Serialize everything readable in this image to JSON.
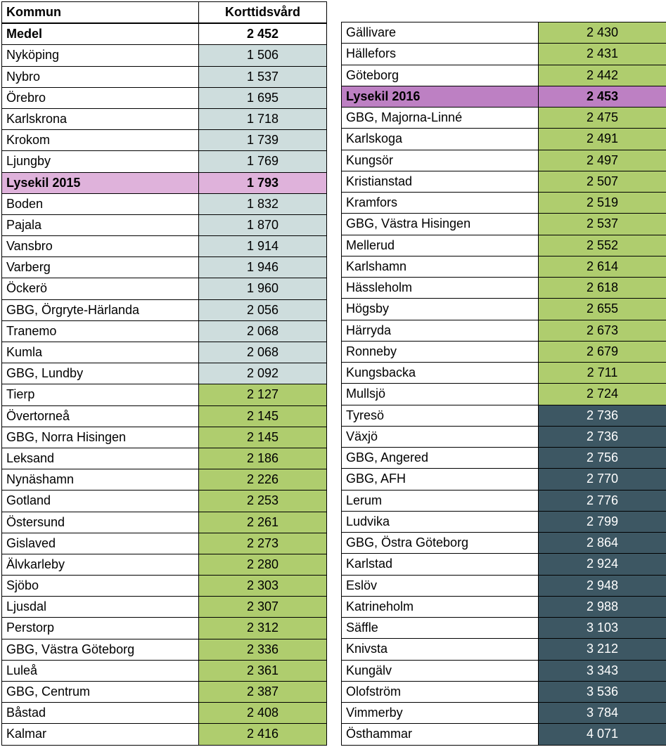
{
  "headers": {
    "col1": "Kommun",
    "col2": "Korttidsvård"
  },
  "colors": {
    "white": "#ffffff",
    "blue": "#cedddd",
    "green": "#afcd6e",
    "pink": "#dfb2db",
    "purple": "#bd80c3",
    "dark": "#3d5763",
    "dark_text": "#ffffff",
    "default_text": "#000000"
  },
  "left": [
    {
      "name": "Medel",
      "val": "2 452",
      "bg": "white",
      "bold": true
    },
    {
      "name": "Nyköping",
      "val": "1 506",
      "bg": "blue"
    },
    {
      "name": "Nybro",
      "val": "1 537",
      "bg": "blue"
    },
    {
      "name": "Örebro",
      "val": "1 695",
      "bg": "blue"
    },
    {
      "name": "Karlskrona",
      "val": "1 718",
      "bg": "blue"
    },
    {
      "name": "Krokom",
      "val": "1 739",
      "bg": "blue"
    },
    {
      "name": "Ljungby",
      "val": "1 769",
      "bg": "blue"
    },
    {
      "name": "Lysekil 2015",
      "val": "1 793",
      "bg": "pink",
      "bold": true,
      "nameBg": "pink"
    },
    {
      "name": "Boden",
      "val": "1 832",
      "bg": "blue"
    },
    {
      "name": "Pajala",
      "val": "1 870",
      "bg": "blue"
    },
    {
      "name": "Vansbro",
      "val": "1 914",
      "bg": "blue"
    },
    {
      "name": "Varberg",
      "val": "1 946",
      "bg": "blue"
    },
    {
      "name": "Öckerö",
      "val": "1 960",
      "bg": "blue"
    },
    {
      "name": "GBG, Örgryte-Härlanda",
      "val": "2 056",
      "bg": "blue"
    },
    {
      "name": "Tranemo",
      "val": "2 068",
      "bg": "blue"
    },
    {
      "name": "Kumla",
      "val": "2 068",
      "bg": "blue"
    },
    {
      "name": "GBG, Lundby",
      "val": "2 092",
      "bg": "blue"
    },
    {
      "name": "Tierp",
      "val": "2 127",
      "bg": "green"
    },
    {
      "name": "Övertorneå",
      "val": "2 145",
      "bg": "green"
    },
    {
      "name": "GBG, Norra Hisingen",
      "val": "2 145",
      "bg": "green"
    },
    {
      "name": "Leksand",
      "val": "2 186",
      "bg": "green"
    },
    {
      "name": "Nynäshamn",
      "val": "2 226",
      "bg": "green"
    },
    {
      "name": "Gotland",
      "val": "2 253",
      "bg": "green"
    },
    {
      "name": "Östersund",
      "val": "2 261",
      "bg": "green"
    },
    {
      "name": "Gislaved",
      "val": "2 273",
      "bg": "green"
    },
    {
      "name": "Älvkarleby",
      "val": "2 280",
      "bg": "green"
    },
    {
      "name": "Sjöbo",
      "val": "2 303",
      "bg": "green"
    },
    {
      "name": "Ljusdal",
      "val": "2 307",
      "bg": "green"
    },
    {
      "name": "Perstorp",
      "val": "2 312",
      "bg": "green"
    },
    {
      "name": "GBG, Västra Göteborg",
      "val": "2 336",
      "bg": "green"
    },
    {
      "name": "Luleå",
      "val": "2 361",
      "bg": "green"
    },
    {
      "name": "GBG, Centrum",
      "val": "2 387",
      "bg": "green"
    },
    {
      "name": "Båstad",
      "val": "2 408",
      "bg": "green"
    },
    {
      "name": "Kalmar",
      "val": "2 416",
      "bg": "green"
    }
  ],
  "right": [
    {
      "name": "Gällivare",
      "val": "2 430",
      "bg": "green"
    },
    {
      "name": "Hällefors",
      "val": "2 431",
      "bg": "green"
    },
    {
      "name": "Göteborg",
      "val": "2 442",
      "bg": "green"
    },
    {
      "name": "Lysekil 2016",
      "val": "2 453",
      "bg": "purple",
      "bold": true,
      "nameBg": "purple"
    },
    {
      "name": "GBG, Majorna-Linné",
      "val": "2 475",
      "bg": "green"
    },
    {
      "name": "Karlskoga",
      "val": "2 491",
      "bg": "green"
    },
    {
      "name": "Kungsör",
      "val": "2 497",
      "bg": "green"
    },
    {
      "name": "Kristianstad",
      "val": "2 507",
      "bg": "green"
    },
    {
      "name": "Kramfors",
      "val": "2 519",
      "bg": "green"
    },
    {
      "name": "GBG, Västra Hisingen",
      "val": "2 537",
      "bg": "green"
    },
    {
      "name": "Mellerud",
      "val": "2 552",
      "bg": "green"
    },
    {
      "name": "Karlshamn",
      "val": "2 614",
      "bg": "green"
    },
    {
      "name": "Hässleholm",
      "val": "2 618",
      "bg": "green"
    },
    {
      "name": "Högsby",
      "val": "2 655",
      "bg": "green"
    },
    {
      "name": "Härryda",
      "val": "2 673",
      "bg": "green"
    },
    {
      "name": "Ronneby",
      "val": "2 679",
      "bg": "green"
    },
    {
      "name": "Kungsbacka",
      "val": "2 711",
      "bg": "green"
    },
    {
      "name": "Mullsjö",
      "val": "2 724",
      "bg": "green"
    },
    {
      "name": "Tyresö",
      "val": "2 736",
      "bg": "dark"
    },
    {
      "name": "Växjö",
      "val": "2 736",
      "bg": "dark"
    },
    {
      "name": "GBG, Angered",
      "val": "2 756",
      "bg": "dark"
    },
    {
      "name": "GBG, AFH",
      "val": "2 770",
      "bg": "dark"
    },
    {
      "name": "Lerum",
      "val": "2 776",
      "bg": "dark"
    },
    {
      "name": "Ludvika",
      "val": "2 799",
      "bg": "dark"
    },
    {
      "name": "GBG, Östra Göteborg",
      "val": "2 864",
      "bg": "dark"
    },
    {
      "name": "Karlstad",
      "val": "2 924",
      "bg": "dark"
    },
    {
      "name": "Eslöv",
      "val": "2 948",
      "bg": "dark"
    },
    {
      "name": "Katrineholm",
      "val": "2 988",
      "bg": "dark"
    },
    {
      "name": "Säffle",
      "val": "3 103",
      "bg": "dark"
    },
    {
      "name": "Knivsta",
      "val": "3 212",
      "bg": "dark"
    },
    {
      "name": "Kungälv",
      "val": "3 343",
      "bg": "dark"
    },
    {
      "name": "Olofström",
      "val": "3 536",
      "bg": "dark"
    },
    {
      "name": "Vimmerby",
      "val": "3 784",
      "bg": "dark"
    },
    {
      "name": "Östhammar",
      "val": "4 071",
      "bg": "dark"
    }
  ]
}
